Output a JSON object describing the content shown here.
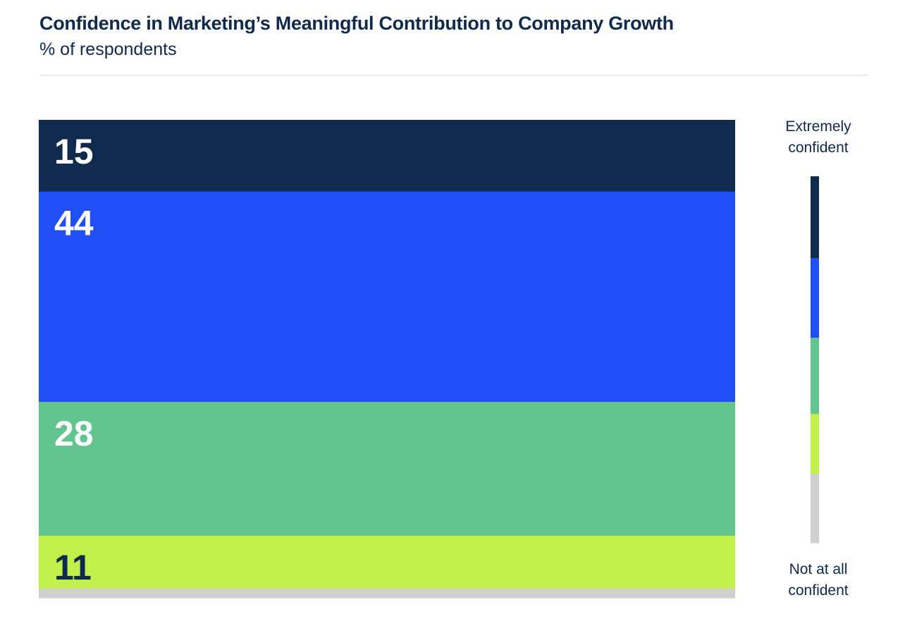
{
  "header": {
    "title": "Confidence in Marketing’s Meaningful Contribution to Company Growth",
    "subtitle": "% of respondents"
  },
  "legend": {
    "top_label_line1": "Extremely",
    "top_label_line2": "confident",
    "bottom_label_line1": "Not at all",
    "bottom_label_line2": "confident"
  },
  "chart_data": {
    "type": "bar",
    "orientation": "stacked-100",
    "title": "Confidence in Marketing’s Meaningful Contribution to Company Growth",
    "subtitle": "% of respondents",
    "categories": [
      "Extremely confident",
      "",
      "",
      "",
      "Not at all confident"
    ],
    "values": [
      15,
      44,
      28,
      11,
      2
    ],
    "labels": [
      "15",
      "44",
      "28",
      "11",
      ""
    ],
    "colors": [
      "#0f2a4d",
      "#214ef5",
      "#62c58e",
      "#c1f04a",
      "#cfcfcf"
    ],
    "label_colors": [
      "#ffffff",
      "#ffffff",
      "#ffffff",
      "#0f2a4d",
      "#0f2a4d"
    ],
    "legend_placement": "right",
    "grid": false
  }
}
